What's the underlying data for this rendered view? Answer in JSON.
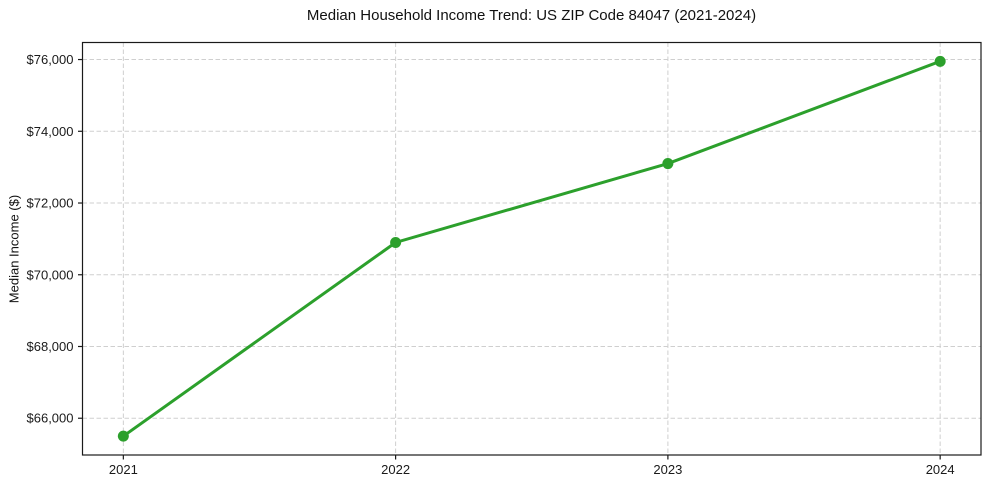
{
  "chart_data": {
    "type": "line",
    "title": "Median Household Income Trend: US ZIP Code 84047 (2021-2024)",
    "xlabel": "",
    "ylabel": "Median Income ($)",
    "x": [
      2021,
      2022,
      2023,
      2024
    ],
    "series": [
      {
        "name": "Median Household Income",
        "color": "#2ca02c",
        "values": [
          65500,
          70900,
          73100,
          75950
        ]
      }
    ],
    "xtick_labels": [
      "2021",
      "2022",
      "2023",
      "2024"
    ],
    "ytick_values": [
      66000,
      68000,
      70000,
      72000,
      74000,
      76000
    ],
    "ytick_labels": [
      "$66,000",
      "$68,000",
      "$70,000",
      "$72,000",
      "$74,000",
      "$76,000"
    ],
    "xlim": [
      2020.85,
      2024.15
    ],
    "ylim": [
      64975,
      76475
    ],
    "grid": true,
    "grid_color": "#cfcfcf",
    "legend": false,
    "marker": "circle",
    "line_width": 3,
    "marker_radius": 5.5,
    "background": "#ffffff"
  }
}
